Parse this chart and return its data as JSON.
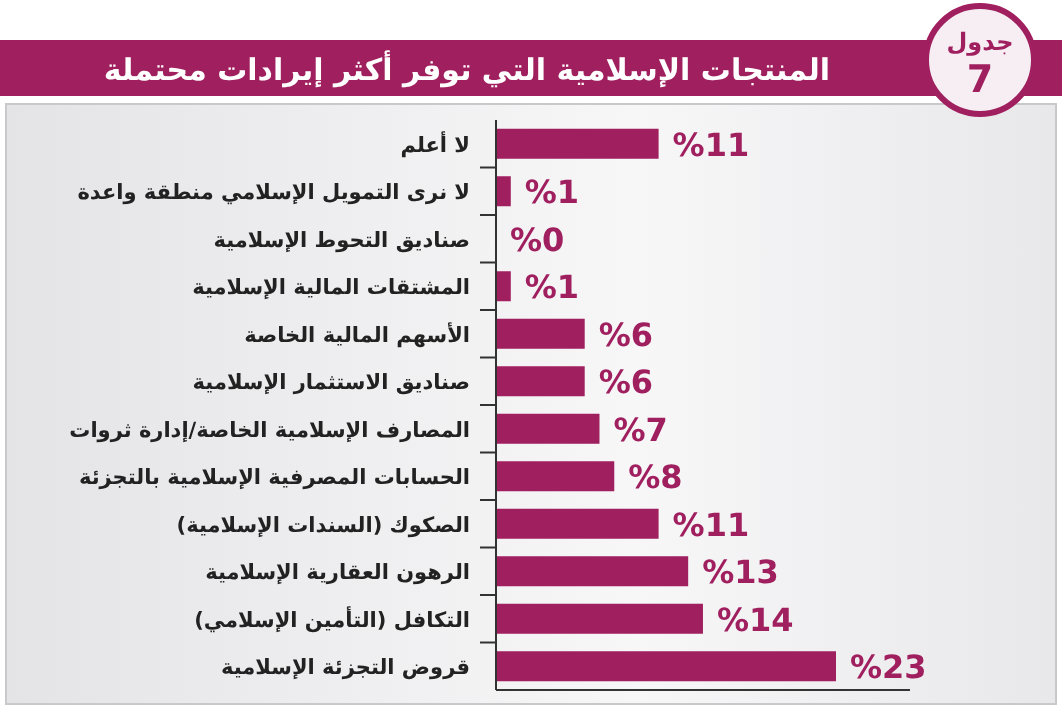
{
  "chart_data": {
    "type": "bar",
    "orientation": "horizontal",
    "title": "المنتجات الإسلامية التي توفر أكثر إيرادات محتملة",
    "annotations": [
      "جدول 7"
    ],
    "categories": [
      "لا أعلم",
      "لا نرى التمويل الإسلامي منطقة واعدة",
      "صناديق التحوط الإسلامية",
      "المشتقات المالية الإسلامية",
      "الأسهم المالية الخاصة",
      "صناديق الاستثمار الإسلامية",
      "المصارف الإسلامية الخاصة/إدارة ثروات",
      "الحسابات المصرفية الإسلامية بالتجزئة",
      "الصكوك (السندات الإسلامية)",
      "الرهون العقارية الإسلامية",
      "التكافل (التأمين الإسلامي)",
      "قروض التجزئة الإسلامية"
    ],
    "values": [
      11,
      1,
      0,
      1,
      6,
      6,
      7,
      8,
      11,
      13,
      14,
      23
    ],
    "value_labels": [
      "%11",
      "%1",
      "%0",
      "%1",
      "%6",
      "%6",
      "%7",
      "%8",
      "%11",
      "%13",
      "%14",
      "%23"
    ],
    "color": "#a01f5f"
  }
}
